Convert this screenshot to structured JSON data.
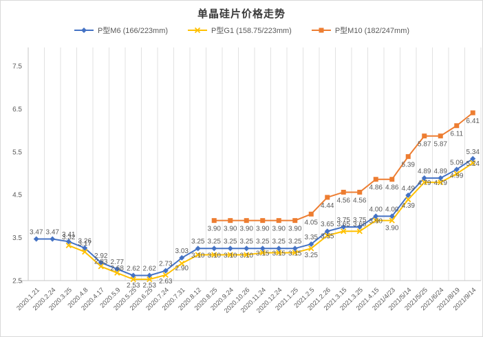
{
  "title": "单晶硅片价格走势",
  "chart_data": {
    "type": "line",
    "title": "单晶硅片价格走势",
    "grid": "vertical-only",
    "legend_position": "top",
    "ylim": [
      2.5,
      7.5
    ],
    "yticks": [
      "2.5",
      "3.5",
      "4.5",
      "5.5",
      "6.5",
      "7.5"
    ],
    "categories": [
      "2020.1.21",
      "2020.2.24",
      "2020.3.25",
      "2020.4.8",
      "2020.4.17",
      "2020.5.9",
      "2020.5.25",
      "2020.6.25",
      "2020.7.24",
      "2020.7.31",
      "2020.8.12",
      "2020.8.25",
      "2020.9.24",
      "2020.10.26",
      "2020.11.24",
      "2020.12.24",
      "2021.1.25",
      "2021.2.5",
      "2021.2.26",
      "2021.3.15",
      "2021.3.25",
      "2021.4.15",
      "2021/4/23",
      "2021/5/14",
      "2021/5/25",
      "2021/6/24",
      "2021/8/19",
      "2021/9/14"
    ],
    "series": [
      {
        "name": "P型M6 (166/223mm)",
        "color": "#4472C4",
        "marker": "diamond",
        "start_index": 0,
        "values": [
          3.47,
          3.47,
          3.41,
          3.26,
          2.92,
          2.77,
          2.62,
          2.62,
          2.73,
          3.03,
          3.25,
          3.25,
          3.25,
          3.25,
          3.25,
          3.25,
          3.25,
          3.35,
          3.65,
          3.75,
          3.75,
          4.0,
          4.0,
          4.49,
          4.89,
          4.89,
          5.09,
          5.34
        ]
      },
      {
        "name": "P型G1 (158.75/223mm)",
        "color": "#FFC000",
        "marker": "x",
        "start_index": 2,
        "values": [
          3.32,
          3.17,
          2.83,
          2.68,
          2.53,
          2.53,
          2.63,
          2.9,
          3.1,
          3.1,
          3.1,
          3.1,
          3.15,
          3.15,
          3.15,
          3.25,
          3.55,
          3.65,
          3.65,
          3.9,
          3.9,
          4.39,
          4.79,
          4.79,
          4.99,
          5.24
        ]
      },
      {
        "name": "P型M10 (182/247mm)",
        "color": "#ED7D31",
        "marker": "square",
        "start_index": 11,
        "values": [
          3.9,
          3.9,
          3.9,
          3.9,
          3.9,
          3.9,
          4.05,
          4.44,
          4.56,
          4.56,
          4.86,
          4.86,
          5.39,
          5.87,
          5.87,
          6.11,
          6.41
        ]
      }
    ]
  }
}
